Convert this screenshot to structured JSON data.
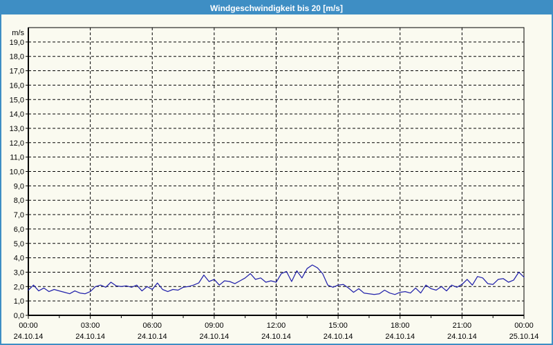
{
  "window": {
    "title": "Windgeschwindigkeit bis 20 [m/s]"
  },
  "colors": {
    "titlebar_bg": "#3E8EC4",
    "border": "#3E8EC4",
    "background": "#FAFAF0",
    "plot_frame": "#000000",
    "grid": "#000000",
    "line": "#2020AA",
    "text": "#000000",
    "title_text": "#FFFFFF"
  },
  "chart_data": {
    "type": "line",
    "title": "Windgeschwindigkeit bis 20 [m/s]",
    "y_axis_unit": "m/s",
    "ylim": [
      0,
      20
    ],
    "y_tick_step": 1,
    "y_tick_labels": [
      "0,0",
      "1,0",
      "2,0",
      "3,0",
      "4,0",
      "5,0",
      "6,0",
      "7,0",
      "8,0",
      "9,0",
      "10,0",
      "11,0",
      "12,0",
      "13,0",
      "14,0",
      "15,0",
      "16,0",
      "17,0",
      "18,0",
      "19,0"
    ],
    "grid": "dashed",
    "legend": "none",
    "x_start_hour": 0,
    "x_end_hour": 24,
    "x_interval_hours": 0.25,
    "x_major_tick_hours": 3,
    "x_minor_tick_hours": 1.5,
    "x_ticks": [
      {
        "time": "00:00",
        "date": "24.10.14"
      },
      {
        "time": "03:00",
        "date": "24.10.14"
      },
      {
        "time": "06:00",
        "date": "24.10.14"
      },
      {
        "time": "09:00",
        "date": "24.10.14"
      },
      {
        "time": "12:00",
        "date": "24.10.14"
      },
      {
        "time": "15:00",
        "date": "24.10.14"
      },
      {
        "time": "18:00",
        "date": "24.10.14"
      },
      {
        "time": "21:00",
        "date": "24.10.14"
      },
      {
        "time": "00:00",
        "date": "25.10.14"
      }
    ],
    "values": [
      1.75,
      2.1,
      1.7,
      1.9,
      1.65,
      1.8,
      1.7,
      1.6,
      1.5,
      1.7,
      1.55,
      1.5,
      1.65,
      2.0,
      2.1,
      1.95,
      2.3,
      2.05,
      2.0,
      2.05,
      1.95,
      2.1,
      1.7,
      2.0,
      1.8,
      2.25,
      1.8,
      1.65,
      1.8,
      1.75,
      1.95,
      2.0,
      2.1,
      2.25,
      2.8,
      2.35,
      2.5,
      2.1,
      2.4,
      2.35,
      2.2,
      2.4,
      2.6,
      2.9,
      2.5,
      2.6,
      2.3,
      2.4,
      2.3,
      2.9,
      3.05,
      2.35,
      3.1,
      2.6,
      3.25,
      3.5,
      3.3,
      2.9,
      2.1,
      1.95,
      2.1,
      2.15,
      1.9,
      1.6,
      1.85,
      1.55,
      1.5,
      1.45,
      1.5,
      1.75,
      1.55,
      1.45,
      1.6,
      1.65,
      1.55,
      1.9,
      1.55,
      2.1,
      1.85,
      1.75,
      2.0,
      1.7,
      2.1,
      1.95,
      2.15,
      2.5,
      2.1,
      2.7,
      2.6,
      2.2,
      2.15,
      2.5,
      2.55,
      2.3,
      2.45,
      3.0,
      2.65
    ]
  }
}
